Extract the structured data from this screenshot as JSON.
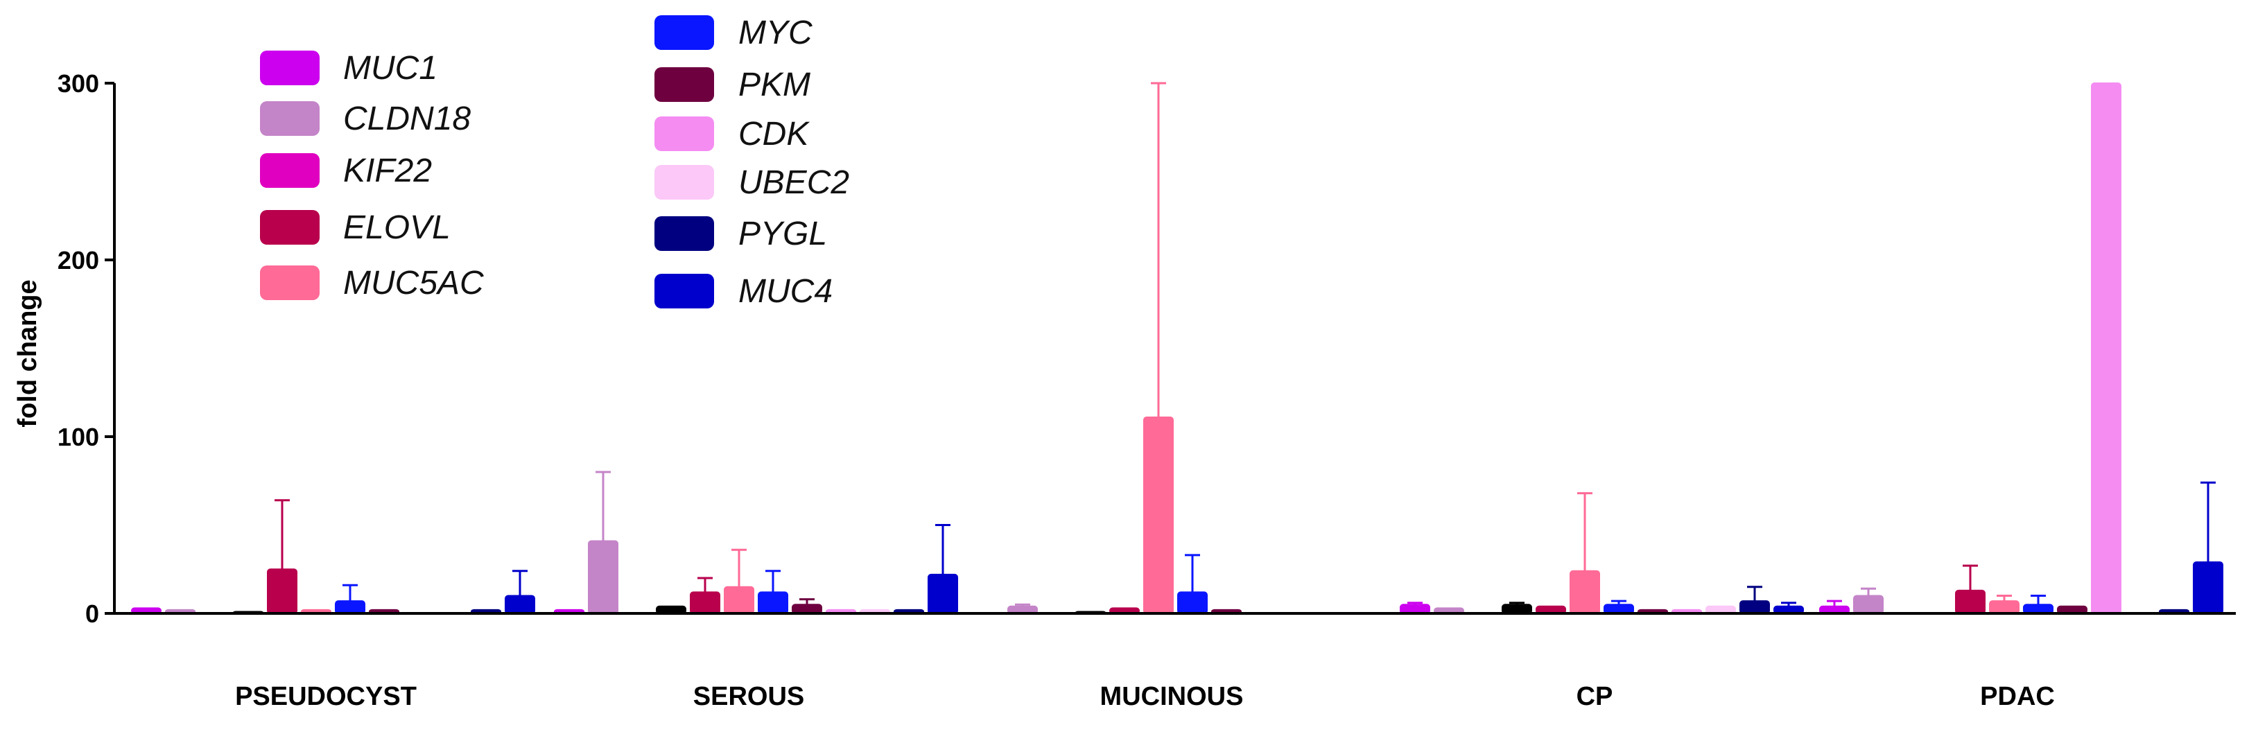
{
  "chart_data": {
    "type": "bar",
    "title": "",
    "xlabel": "",
    "ylabel": "fold change",
    "ylim": [
      0,
      300
    ],
    "yticks": [
      0,
      100,
      200,
      300
    ],
    "grid": false,
    "legend_position": "top-left",
    "categories": [
      "PSEUDOCYST",
      "SEROUS",
      "MUCINOUS",
      "CP",
      "PDAC"
    ],
    "series": [
      {
        "name": "MUC1",
        "color": "#cc00ee",
        "values": [
          3,
          2,
          0,
          5,
          4
        ],
        "errors": [
          0,
          0,
          0,
          1,
          3
        ]
      },
      {
        "name": "CLDN18",
        "color": "#c484c8",
        "values": [
          2,
          41,
          4,
          3,
          10
        ],
        "errors": [
          0,
          39,
          1,
          0,
          4
        ]
      },
      {
        "name": "KIF22",
        "color": "#e000c0",
        "values": [
          0,
          0,
          0,
          0,
          0
        ],
        "errors": [
          0,
          0,
          0,
          0,
          0
        ]
      },
      {
        "name": "",
        "color": "#000000",
        "values": [
          1,
          4,
          1,
          5,
          0
        ],
        "errors": [
          0,
          0,
          0,
          1,
          0
        ]
      },
      {
        "name": "ELOVL",
        "color": "#b8004c",
        "values": [
          25,
          12,
          3,
          4,
          13
        ],
        "errors": [
          39,
          8,
          0,
          0,
          14
        ]
      },
      {
        "name": "MUC5AC",
        "color": "#ff6a96",
        "values": [
          2,
          15,
          111,
          24,
          7
        ],
        "errors": [
          0,
          21,
          189,
          44,
          3
        ]
      },
      {
        "name": "MYC",
        "color": "#0a16ff",
        "values": [
          7,
          12,
          12,
          5,
          5
        ],
        "errors": [
          9,
          12,
          21,
          2,
          5
        ]
      },
      {
        "name": "PKM",
        "color": "#6e0040",
        "values": [
          2,
          5,
          2,
          2,
          4
        ],
        "errors": [
          0,
          3,
          0,
          0,
          0
        ]
      },
      {
        "name": "CDK",
        "color": "#f58cf2",
        "values": [
          0,
          2,
          0,
          2,
          300
        ],
        "errors": [
          0,
          0,
          0,
          0,
          0
        ]
      },
      {
        "name": "UBEC2",
        "color": "#fbc8f7",
        "values": [
          0,
          2,
          0,
          4,
          0
        ],
        "errors": [
          0,
          0,
          0,
          0,
          0
        ]
      },
      {
        "name": "PYGL",
        "color": "#000080",
        "values": [
          2,
          2,
          0,
          7,
          2
        ],
        "errors": [
          0,
          0,
          0,
          8,
          0
        ]
      },
      {
        "name": "MUC4",
        "color": "#0000cc",
        "values": [
          10,
          22,
          0,
          4,
          29
        ],
        "errors": [
          14,
          28,
          0,
          2,
          45
        ]
      }
    ]
  }
}
